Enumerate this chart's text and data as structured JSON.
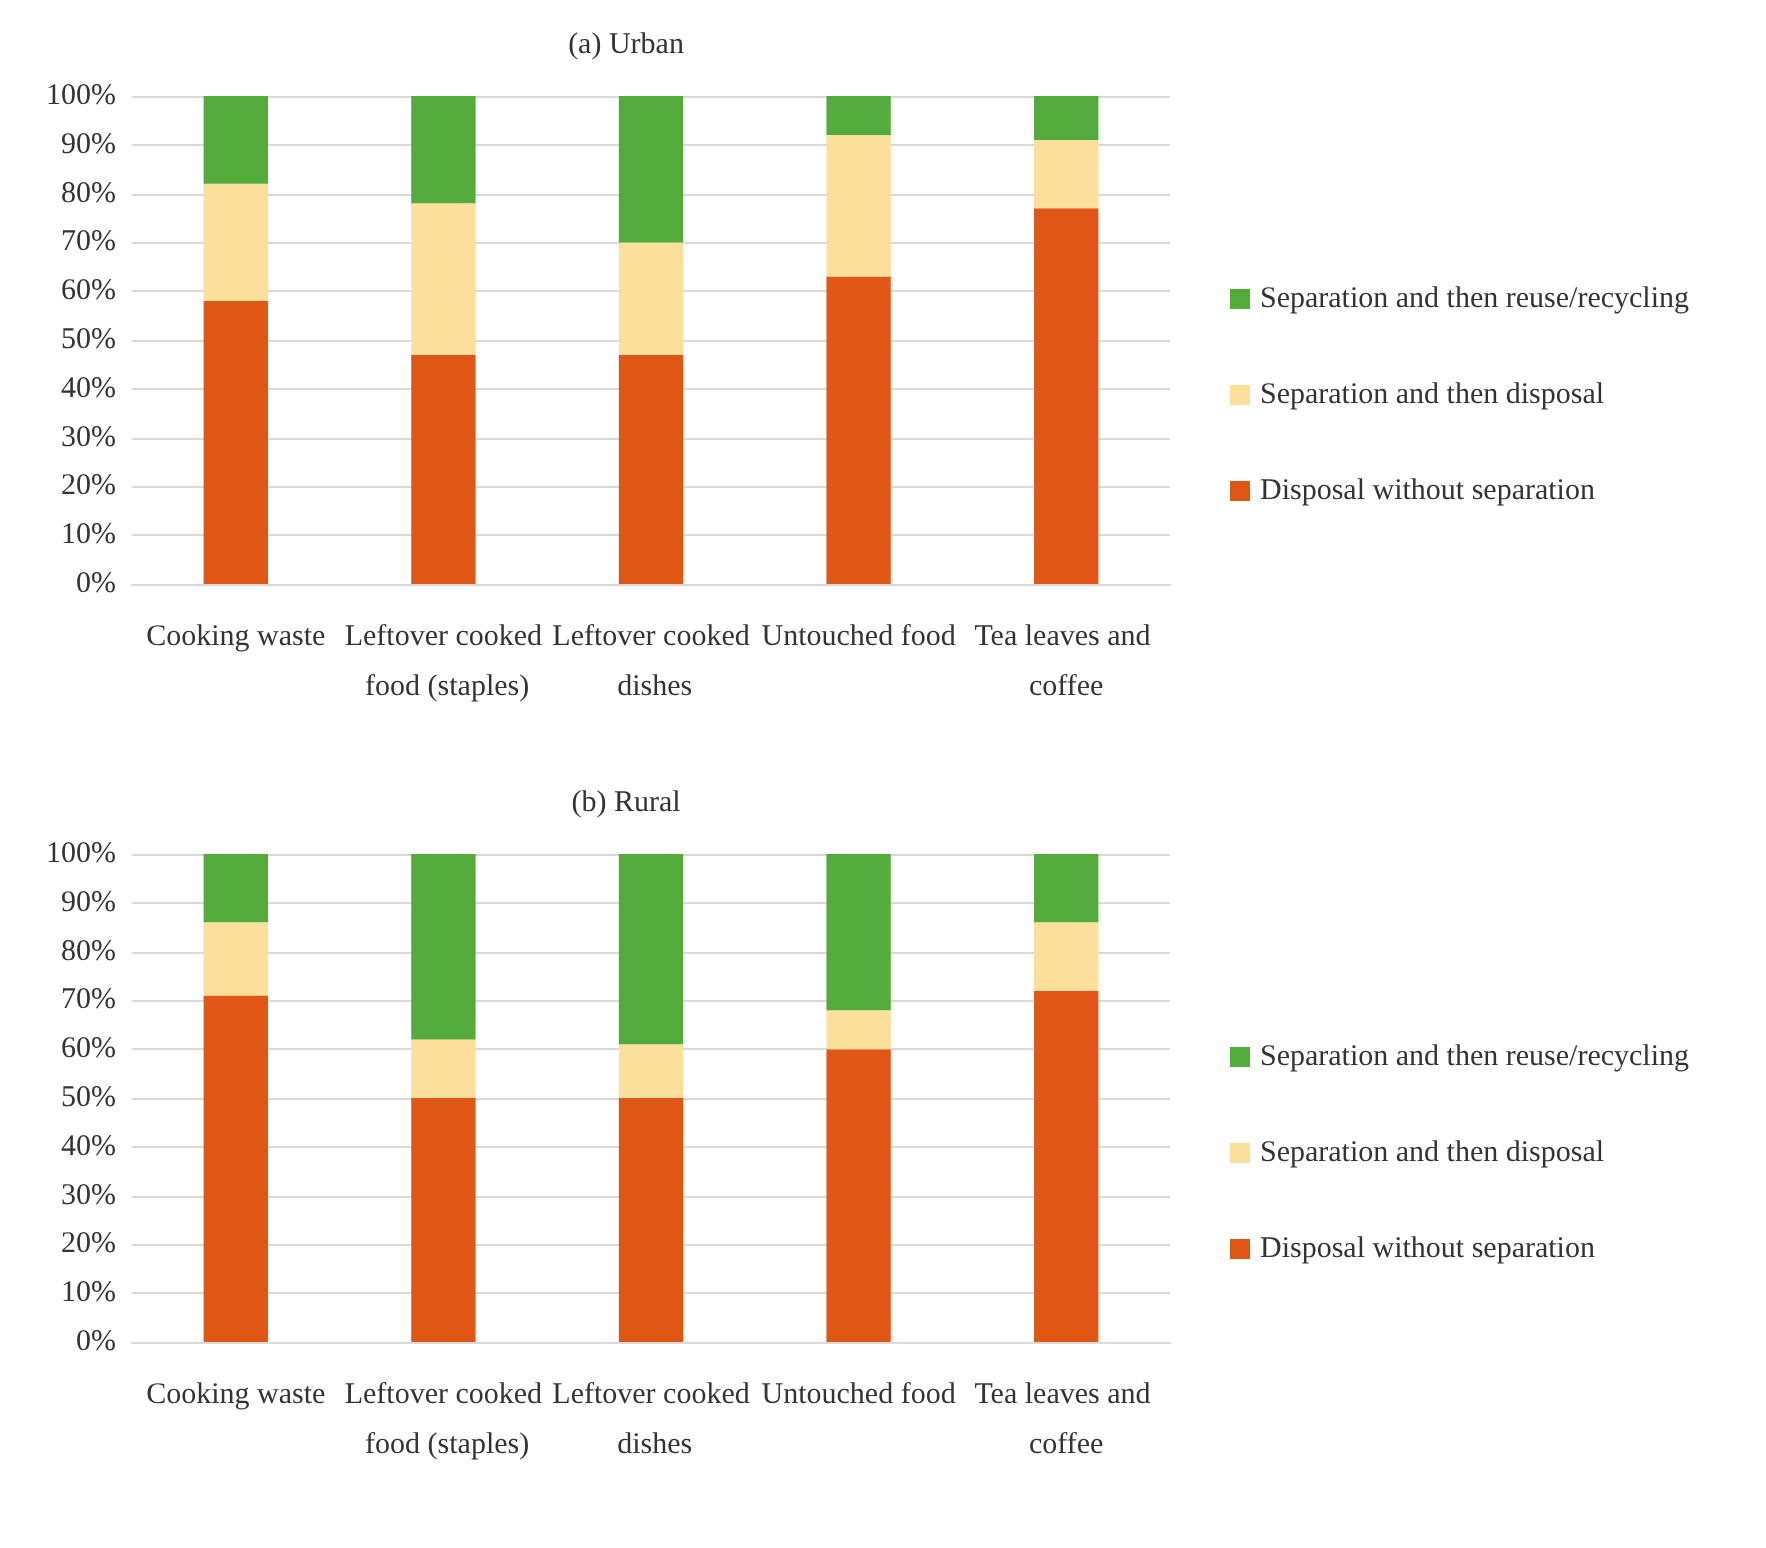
{
  "chart_data": [
    {
      "type": "bar",
      "title": "(a) Urban",
      "stacked": true,
      "categories": [
        "Cooking waste",
        "Leftover cooked food (staples)",
        "Leftover cooked dishes",
        "Untouched food",
        "Tea leaves and coffee"
      ],
      "series": [
        {
          "name": "Disposal without separation",
          "color": "#e05615",
          "values": [
            58,
            47,
            47,
            63,
            77
          ]
        },
        {
          "name": "Separation and then disposal",
          "color": "#fddf9c",
          "values": [
            24,
            31,
            23,
            29,
            14
          ]
        },
        {
          "name": "Separation and then reuse/recycling",
          "color": "#52ab3a",
          "values": [
            18,
            22,
            30,
            8,
            9
          ]
        }
      ],
      "ylim": [
        0,
        100
      ],
      "yticks": [
        {
          "value": 0,
          "label": "0%"
        },
        {
          "value": 10,
          "label": "10%"
        },
        {
          "value": 20,
          "label": "20%"
        },
        {
          "value": 30,
          "label": "30%"
        },
        {
          "value": 40,
          "label": "40%"
        },
        {
          "value": 50,
          "label": "50%"
        },
        {
          "value": 60,
          "label": "60%"
        },
        {
          "value": 70,
          "label": "70%"
        },
        {
          "value": 80,
          "label": "80%"
        },
        {
          "value": 90,
          "label": "90%"
        },
        {
          "value": 100,
          "label": "100%"
        }
      ],
      "grid": "y",
      "legend": "right"
    },
    {
      "type": "bar",
      "title": "(b) Rural",
      "stacked": true,
      "categories": [
        "Cooking waste",
        "Leftover cooked food (staples)",
        "Leftover cooked dishes",
        "Untouched food",
        "Tea leaves and coffee"
      ],
      "series": [
        {
          "name": "Disposal without separation",
          "color": "#e05615",
          "values": [
            71,
            50,
            50,
            60,
            72
          ]
        },
        {
          "name": "Separation and then disposal",
          "color": "#fddf9c",
          "values": [
            15,
            12,
            11,
            8,
            14
          ]
        },
        {
          "name": "Separation and then reuse/recycling",
          "color": "#52ab3a",
          "values": [
            14,
            38,
            39,
            32,
            14
          ]
        }
      ],
      "ylim": [
        0,
        100
      ],
      "yticks": [
        {
          "value": 0,
          "label": "0%"
        },
        {
          "value": 10,
          "label": "10%"
        },
        {
          "value": 20,
          "label": "20%"
        },
        {
          "value": 30,
          "label": "30%"
        },
        {
          "value": 40,
          "label": "40%"
        },
        {
          "value": 50,
          "label": "50%"
        },
        {
          "value": 60,
          "label": "60%"
        },
        {
          "value": 70,
          "label": "70%"
        },
        {
          "value": 80,
          "label": "80%"
        },
        {
          "value": 90,
          "label": "90%"
        },
        {
          "value": 100,
          "label": "100%"
        }
      ],
      "grid": "y",
      "legend": "right"
    }
  ]
}
